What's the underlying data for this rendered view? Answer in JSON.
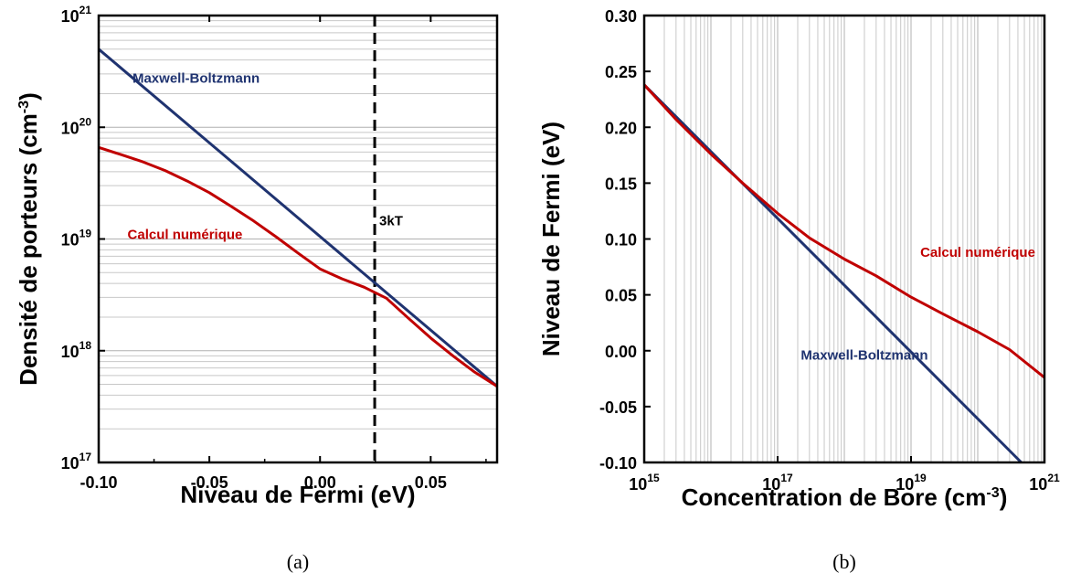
{
  "chart_data": [
    {
      "type": "line",
      "caption": "(a)",
      "xlabel": "Niveau de Fermi (eV)",
      "ylabel": {
        "base": "Densité de porteurs (cm",
        "exp": "-3",
        "close": ")"
      },
      "xlim": [
        -0.1,
        0.08
      ],
      "ylim": [
        1e+17,
        1e+21
      ],
      "yscale": "log",
      "xticks": [
        {
          "value": -0.1,
          "label": "-0.10"
        },
        {
          "value": -0.05,
          "label": "-0.05"
        },
        {
          "value": 0.0,
          "label": "0.00"
        },
        {
          "value": 0.05,
          "label": "0.05"
        }
      ],
      "yticks": [
        {
          "value": 1e+17,
          "base": "10",
          "exp": "17"
        },
        {
          "value": 1e+18,
          "base": "10",
          "exp": "18"
        },
        {
          "value": 1e+19,
          "base": "10",
          "exp": "19"
        },
        {
          "value": 1e+20,
          "base": "10",
          "exp": "20"
        },
        {
          "value": 1e+21,
          "base": "10",
          "exp": "21"
        }
      ],
      "grid": "horizontal minor",
      "vline": {
        "x": 0.0247,
        "label": "3kT"
      },
      "series": [
        {
          "name": "Maxwell-Boltzmann",
          "color": "#1f3370",
          "points": [
            [
              -0.1,
              5e+20
            ],
            [
              0.08,
              4.8e+17
            ]
          ]
        },
        {
          "name": "Calcul numérique",
          "color": "#c00000",
          "points": [
            [
              -0.1,
              6.6e+19
            ],
            [
              -0.09,
              5.7e+19
            ],
            [
              -0.08,
              4.9e+19
            ],
            [
              -0.07,
              4.1e+19
            ],
            [
              -0.06,
              3.3e+19
            ],
            [
              -0.05,
              2.6e+19
            ],
            [
              -0.04,
              1.95e+19
            ],
            [
              -0.03,
              1.45e+19
            ],
            [
              -0.02,
              1.05e+19
            ],
            [
              -0.01,
              7.5e+18
            ],
            [
              0.0,
              5.4e+18
            ],
            [
              0.01,
              4.4e+18
            ],
            [
              0.02,
              3.7e+18
            ],
            [
              0.03,
              2.95e+18
            ],
            [
              0.04,
              1.95e+18
            ],
            [
              0.05,
              1.3e+18
            ],
            [
              0.06,
              9e+17
            ],
            [
              0.07,
              6.4e+17
            ],
            [
              0.08,
              4.8e+17
            ]
          ]
        }
      ],
      "annotations": [
        {
          "text": "Maxwell-Boltzmann",
          "x": -0.056,
          "y": 2.5e+20,
          "color": "#1f3370"
        },
        {
          "text": "Calcul numérique",
          "x": -0.061,
          "y": 1e+19,
          "color": "#c00000"
        }
      ]
    },
    {
      "type": "line",
      "caption": "(b)",
      "xlabel": {
        "base": "Concentration de Bore (cm",
        "exp": "-3",
        "close": ")"
      },
      "ylabel": "Niveau de Fermi (eV)",
      "xlim": [
        1000000000000000.0,
        1e+21
      ],
      "ylim": [
        -0.1,
        0.3
      ],
      "xscale": "log",
      "xticks": [
        {
          "value": 1000000000000000.0,
          "base": "10",
          "exp": "15"
        },
        {
          "value": 1e+17,
          "base": "10",
          "exp": "17"
        },
        {
          "value": 1e+19,
          "base": "10",
          "exp": "19"
        },
        {
          "value": 1e+21,
          "base": "10",
          "exp": "21"
        }
      ],
      "yticks": [
        {
          "value": -0.1,
          "label": "-0.10"
        },
        {
          "value": -0.05,
          "label": "-0.05"
        },
        {
          "value": 0.0,
          "label": "0.00"
        },
        {
          "value": 0.05,
          "label": "0.05"
        },
        {
          "value": 0.1,
          "label": "0.10"
        },
        {
          "value": 0.15,
          "label": "0.15"
        },
        {
          "value": 0.2,
          "label": "0.20"
        },
        {
          "value": 0.25,
          "label": "0.25"
        },
        {
          "value": 0.3,
          "label": "0.30"
        }
      ],
      "grid": "vertical minor",
      "series": [
        {
          "name": "Maxwell-Boltzmann",
          "color": "#1f3370",
          "points": [
            [
              1000000000000000.0,
              0.238
            ],
            [
              4.5e+20,
              -0.1
            ]
          ]
        },
        {
          "name": "Calcul numérique",
          "color": "#c00000",
          "points": [
            [
              1000000000000000.0,
              0.238
            ],
            [
              3000000000000000.0,
              0.207
            ],
            [
              1e+16,
              0.176
            ],
            [
              3e+16,
              0.15
            ],
            [
              1e+17,
              0.123
            ],
            [
              3e+17,
              0.101
            ],
            [
              1e+18,
              0.082
            ],
            [
              3e+18,
              0.067
            ],
            [
              1e+19,
              0.048
            ],
            [
              3e+19,
              0.033
            ],
            [
              1e+20,
              0.017
            ],
            [
              3e+20,
              0.001
            ],
            [
              1e+21,
              -0.024
            ]
          ]
        }
      ],
      "annotations": [
        {
          "text": "Calcul numérique",
          "x": 1e+20,
          "y": 0.084,
          "color": "#c00000"
        },
        {
          "text": "Maxwell-Boltzmann",
          "x": 2e+18,
          "y": -0.008,
          "color": "#1f3370"
        }
      ]
    }
  ]
}
